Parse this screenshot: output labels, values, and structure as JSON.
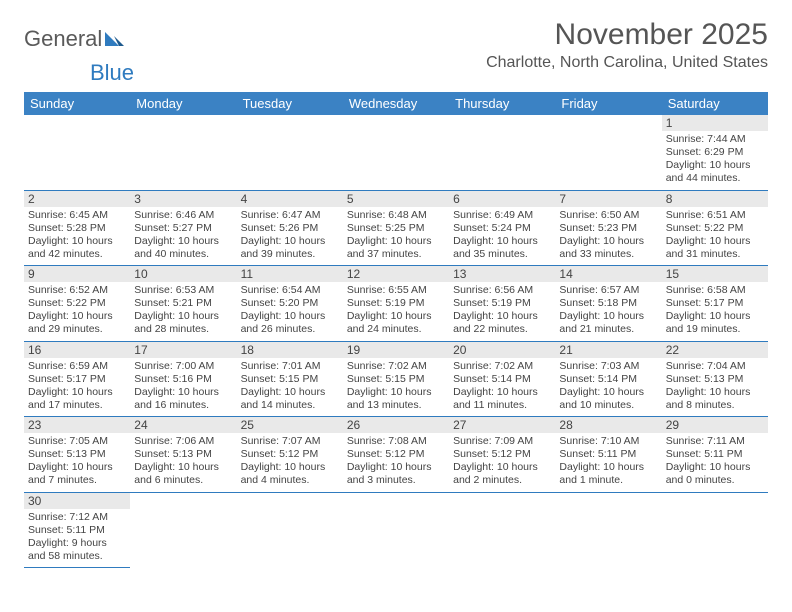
{
  "brand": {
    "part1": "General",
    "part2": "Blue"
  },
  "title": "November 2025",
  "location": "Charlotte, North Carolina, United States",
  "colors": {
    "header_bg": "#3b82c4",
    "header_text": "#ffffff",
    "rule": "#2f7bbf",
    "daynum_bg": "#e9e9e9",
    "text": "#444444"
  },
  "weekdays": [
    "Sunday",
    "Monday",
    "Tuesday",
    "Wednesday",
    "Thursday",
    "Friday",
    "Saturday"
  ],
  "first_weekday_index": 6,
  "days": [
    {
      "n": 1,
      "sr": "7:44 AM",
      "ss": "6:29 PM",
      "dl": "10 hours and 44 minutes."
    },
    {
      "n": 2,
      "sr": "6:45 AM",
      "ss": "5:28 PM",
      "dl": "10 hours and 42 minutes."
    },
    {
      "n": 3,
      "sr": "6:46 AM",
      "ss": "5:27 PM",
      "dl": "10 hours and 40 minutes."
    },
    {
      "n": 4,
      "sr": "6:47 AM",
      "ss": "5:26 PM",
      "dl": "10 hours and 39 minutes."
    },
    {
      "n": 5,
      "sr": "6:48 AM",
      "ss": "5:25 PM",
      "dl": "10 hours and 37 minutes."
    },
    {
      "n": 6,
      "sr": "6:49 AM",
      "ss": "5:24 PM",
      "dl": "10 hours and 35 minutes."
    },
    {
      "n": 7,
      "sr": "6:50 AM",
      "ss": "5:23 PM",
      "dl": "10 hours and 33 minutes."
    },
    {
      "n": 8,
      "sr": "6:51 AM",
      "ss": "5:22 PM",
      "dl": "10 hours and 31 minutes."
    },
    {
      "n": 9,
      "sr": "6:52 AM",
      "ss": "5:22 PM",
      "dl": "10 hours and 29 minutes."
    },
    {
      "n": 10,
      "sr": "6:53 AM",
      "ss": "5:21 PM",
      "dl": "10 hours and 28 minutes."
    },
    {
      "n": 11,
      "sr": "6:54 AM",
      "ss": "5:20 PM",
      "dl": "10 hours and 26 minutes."
    },
    {
      "n": 12,
      "sr": "6:55 AM",
      "ss": "5:19 PM",
      "dl": "10 hours and 24 minutes."
    },
    {
      "n": 13,
      "sr": "6:56 AM",
      "ss": "5:19 PM",
      "dl": "10 hours and 22 minutes."
    },
    {
      "n": 14,
      "sr": "6:57 AM",
      "ss": "5:18 PM",
      "dl": "10 hours and 21 minutes."
    },
    {
      "n": 15,
      "sr": "6:58 AM",
      "ss": "5:17 PM",
      "dl": "10 hours and 19 minutes."
    },
    {
      "n": 16,
      "sr": "6:59 AM",
      "ss": "5:17 PM",
      "dl": "10 hours and 17 minutes."
    },
    {
      "n": 17,
      "sr": "7:00 AM",
      "ss": "5:16 PM",
      "dl": "10 hours and 16 minutes."
    },
    {
      "n": 18,
      "sr": "7:01 AM",
      "ss": "5:15 PM",
      "dl": "10 hours and 14 minutes."
    },
    {
      "n": 19,
      "sr": "7:02 AM",
      "ss": "5:15 PM",
      "dl": "10 hours and 13 minutes."
    },
    {
      "n": 20,
      "sr": "7:02 AM",
      "ss": "5:14 PM",
      "dl": "10 hours and 11 minutes."
    },
    {
      "n": 21,
      "sr": "7:03 AM",
      "ss": "5:14 PM",
      "dl": "10 hours and 10 minutes."
    },
    {
      "n": 22,
      "sr": "7:04 AM",
      "ss": "5:13 PM",
      "dl": "10 hours and 8 minutes."
    },
    {
      "n": 23,
      "sr": "7:05 AM",
      "ss": "5:13 PM",
      "dl": "10 hours and 7 minutes."
    },
    {
      "n": 24,
      "sr": "7:06 AM",
      "ss": "5:13 PM",
      "dl": "10 hours and 6 minutes."
    },
    {
      "n": 25,
      "sr": "7:07 AM",
      "ss": "5:12 PM",
      "dl": "10 hours and 4 minutes."
    },
    {
      "n": 26,
      "sr": "7:08 AM",
      "ss": "5:12 PM",
      "dl": "10 hours and 3 minutes."
    },
    {
      "n": 27,
      "sr": "7:09 AM",
      "ss": "5:12 PM",
      "dl": "10 hours and 2 minutes."
    },
    {
      "n": 28,
      "sr": "7:10 AM",
      "ss": "5:11 PM",
      "dl": "10 hours and 1 minute."
    },
    {
      "n": 29,
      "sr": "7:11 AM",
      "ss": "5:11 PM",
      "dl": "10 hours and 0 minutes."
    },
    {
      "n": 30,
      "sr": "7:12 AM",
      "ss": "5:11 PM",
      "dl": "9 hours and 58 minutes."
    }
  ],
  "labels": {
    "sunrise": "Sunrise:",
    "sunset": "Sunset:",
    "daylight": "Daylight:"
  }
}
